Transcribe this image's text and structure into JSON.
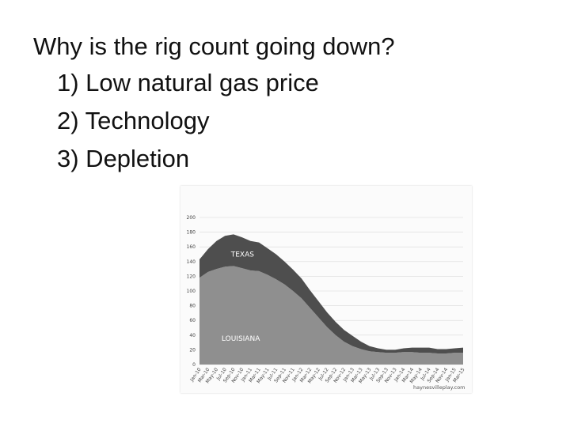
{
  "slide": {
    "heading": "Why is the rig count going down?",
    "reasons": [
      "1) Low natural gas price",
      "2) Technology",
      "3) Depletion"
    ]
  },
  "chart_data": {
    "type": "area",
    "stacked": true,
    "title": "",
    "xlabel": "",
    "ylabel": "",
    "ylim": [
      0,
      200
    ],
    "yticks": [
      0,
      20,
      40,
      60,
      80,
      100,
      120,
      140,
      160,
      180,
      200
    ],
    "grid": true,
    "x": [
      "Jan-10",
      "Mar-10",
      "May-10",
      "Jul-10",
      "Sep-10",
      "Nov-10",
      "Jan-11",
      "Mar-11",
      "May-11",
      "Jul-11",
      "Sep-11",
      "Nov-11",
      "Jan-12",
      "Mar-12",
      "May-12",
      "Jul-12",
      "Sep-12",
      "Nov-12",
      "Jan-13",
      "Mar-13",
      "May-13",
      "Jul-13",
      "Sep-13",
      "Nov-13",
      "Jan-14",
      "Mar-14",
      "May-14",
      "Jul-14",
      "Sep-14",
      "Nov-14",
      "Jan-15",
      "Mar-15"
    ],
    "xtick_labels": [
      "Jan-10",
      "Mar-10",
      "May-10",
      "Jul-10",
      "Sep-10",
      "Nov-10",
      "Jan-11",
      "Mar-11",
      "May-11",
      "Jul-11",
      "Sep-11",
      "Nov-11",
      "Jan-12",
      "Mar-12",
      "May-12",
      "Jul-12",
      "Sep-12",
      "Nov-12",
      "Jan-13",
      "Mar-13",
      "May-13",
      "Jul-13",
      "Sep-13",
      "Nov-13",
      "Jan-14",
      "Mar-14",
      "May-14",
      "Jul-14",
      "Sep-14",
      "Nov-14",
      "Jan-15",
      "Mar-15"
    ],
    "series": [
      {
        "name": "LOUISIANA",
        "color": "#8f8f8f",
        "values": [
          118,
          126,
          130,
          133,
          134,
          131,
          128,
          127,
          122,
          116,
          109,
          100,
          90,
          77,
          64,
          51,
          40,
          31,
          25,
          21,
          18,
          17,
          16,
          16,
          17,
          17,
          16,
          16,
          15,
          15,
          16,
          16
        ]
      },
      {
        "name": "TEXAS",
        "color": "#4e4e4e",
        "values": [
          25,
          31,
          38,
          42,
          43,
          42,
          40,
          39,
          36,
          34,
          31,
          29,
          27,
          24,
          22,
          20,
          18,
          16,
          14,
          10,
          7,
          5,
          4,
          4,
          5,
          6,
          7,
          7,
          6,
          6,
          6,
          7
        ]
      }
    ],
    "annotations": [
      "haynesvilleplay.com"
    ],
    "colors": {
      "louisiana": "#8f8f8f",
      "texas": "#4e4e4e",
      "grid": "#d9d9d9"
    }
  }
}
